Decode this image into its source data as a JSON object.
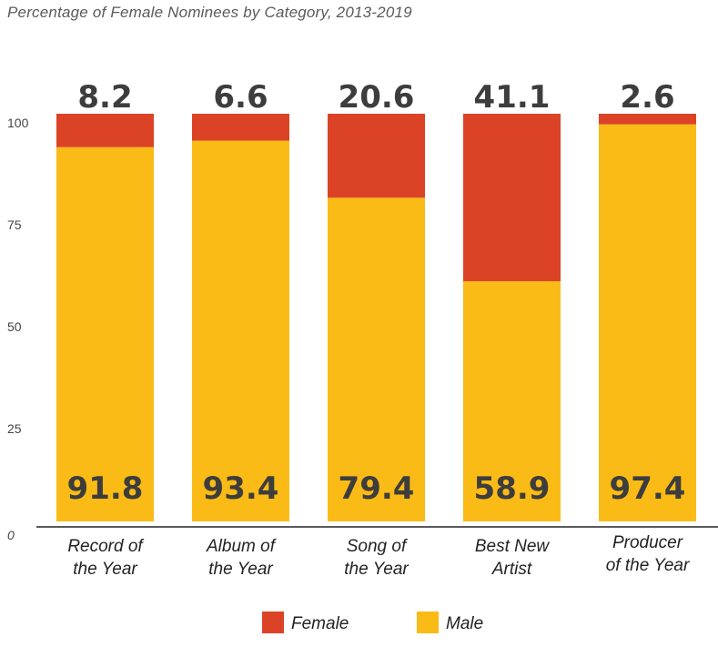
{
  "chart_data": {
    "type": "bar",
    "stacked": true,
    "title": "Percentage of Female Nominees by Category, 2013-2019",
    "categories": [
      [
        "Record of",
        "the Year"
      ],
      [
        "Album of",
        "the Year"
      ],
      [
        "Song of",
        "the Year"
      ],
      [
        "Best New",
        "Artist"
      ],
      [
        "Producer",
        "of the Year"
      ]
    ],
    "series": [
      {
        "name": "Male",
        "values": [
          91.8,
          93.4,
          79.4,
          58.9,
          97.4
        ],
        "color": "#fbbb16"
      },
      {
        "name": "Female",
        "values": [
          8.2,
          6.6,
          20.6,
          41.1,
          2.6
        ],
        "color": "#dc4326"
      }
    ],
    "yticks": [
      "0",
      "25",
      "50",
      "75",
      "100"
    ],
    "ylim": [
      0,
      100
    ],
    "grid": false,
    "legend": {
      "position": "bottom",
      "entries": [
        "Female",
        "Male"
      ]
    }
  }
}
